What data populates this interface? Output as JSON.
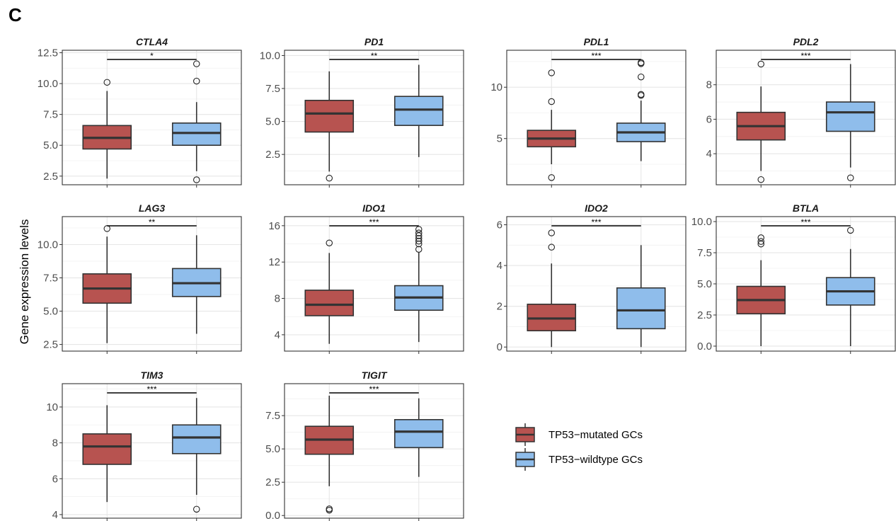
{
  "figure": {
    "panel_label": "C",
    "ylabel": "Gene expression levels",
    "legend": [
      {
        "label": "TP53−mutated GCs",
        "color": "#B75350"
      },
      {
        "label": "TP53−wildtype GCs",
        "color": "#8FBDEB"
      }
    ]
  },
  "chart_data": [
    {
      "type": "box",
      "title": "CTLA4",
      "ylim": [
        1.8,
        12.7
      ],
      "ticks": [
        2.5,
        5.0,
        7.5,
        10.0,
        12.5
      ],
      "tick_labels": [
        "2.5",
        "5.0",
        "7.5",
        "10.0",
        "12.5"
      ],
      "significance": "*",
      "boxes": [
        {
          "group": "TP53−mutated GCs",
          "min": 2.3,
          "q1": 4.7,
          "median": 5.6,
          "q3": 6.6,
          "max": 9.4,
          "outliers": [
            10.1
          ]
        },
        {
          "group": "TP53−wildtype GCs",
          "min": 2.9,
          "q1": 5.0,
          "median": 6.0,
          "q3": 6.8,
          "max": 8.5,
          "outliers": [
            11.6,
            10.2,
            2.2
          ]
        }
      ]
    },
    {
      "type": "box",
      "title": "PD1",
      "ylim": [
        0.2,
        10.4
      ],
      "ticks": [
        2.5,
        5.0,
        7.5,
        10.0
      ],
      "tick_labels": [
        "2.5",
        "5.0",
        "7.5",
        "10.0"
      ],
      "significance": "**",
      "boxes": [
        {
          "group": "TP53−mutated GCs",
          "min": 1.2,
          "q1": 4.2,
          "median": 5.6,
          "q3": 6.6,
          "max": 8.8,
          "outliers": [
            0.7
          ]
        },
        {
          "group": "TP53−wildtype GCs",
          "min": 2.3,
          "q1": 4.7,
          "median": 5.9,
          "q3": 6.9,
          "max": 9.3,
          "outliers": []
        }
      ]
    },
    {
      "type": "box",
      "title": "PDL1",
      "ylim": [
        0.5,
        13.6
      ],
      "ticks": [
        5,
        10
      ],
      "tick_labels": [
        "5",
        "10"
      ],
      "significance": "***",
      "boxes": [
        {
          "group": "TP53−mutated GCs",
          "min": 2.5,
          "q1": 4.2,
          "median": 5.0,
          "q3": 5.8,
          "max": 7.8,
          "outliers": [
            11.4,
            8.6,
            1.2
          ]
        },
        {
          "group": "TP53−wildtype GCs",
          "min": 2.8,
          "q1": 4.7,
          "median": 5.6,
          "q3": 6.5,
          "max": 8.7,
          "outliers": [
            12.4,
            12.3,
            11.0,
            9.3,
            9.2
          ]
        }
      ]
    },
    {
      "type": "box",
      "title": "PDL2",
      "ylim": [
        2.2,
        10.0
      ],
      "ticks": [
        4,
        6,
        8
      ],
      "tick_labels": [
        "4",
        "6",
        "8"
      ],
      "significance": "***",
      "boxes": [
        {
          "group": "TP53−mutated GCs",
          "min": 3.0,
          "q1": 4.8,
          "median": 5.6,
          "q3": 6.4,
          "max": 7.9,
          "outliers": [
            9.2,
            2.5
          ]
        },
        {
          "group": "TP53−wildtype GCs",
          "min": 3.2,
          "q1": 5.3,
          "median": 6.4,
          "q3": 7.0,
          "max": 9.2,
          "outliers": [
            2.6
          ]
        }
      ]
    },
    {
      "type": "box",
      "title": "LAG3",
      "ylim": [
        2.0,
        12.1
      ],
      "ticks": [
        2.5,
        5.0,
        7.5,
        10.0
      ],
      "tick_labels": [
        "2.5",
        "5.0",
        "7.5",
        "10.0"
      ],
      "significance": "**",
      "boxes": [
        {
          "group": "TP53−mutated GCs",
          "min": 2.6,
          "q1": 5.6,
          "median": 6.7,
          "q3": 7.8,
          "max": 10.6,
          "outliers": [
            11.2
          ]
        },
        {
          "group": "TP53−wildtype GCs",
          "min": 3.3,
          "q1": 6.1,
          "median": 7.1,
          "q3": 8.2,
          "max": 10.7,
          "outliers": []
        }
      ]
    },
    {
      "type": "box",
      "title": "IDO1",
      "ylim": [
        2.2,
        17.0
      ],
      "ticks": [
        4,
        8,
        12,
        16
      ],
      "tick_labels": [
        "4",
        "8",
        "12",
        "16"
      ],
      "significance": "***",
      "boxes": [
        {
          "group": "TP53−mutated GCs",
          "min": 3.0,
          "q1": 6.1,
          "median": 7.3,
          "q3": 8.9,
          "max": 13.0,
          "outliers": [
            14.1
          ]
        },
        {
          "group": "TP53−wildtype GCs",
          "min": 3.2,
          "q1": 6.7,
          "median": 8.1,
          "q3": 9.4,
          "max": 13.1,
          "outliers": [
            15.6,
            15.2,
            14.9,
            14.6,
            14.3,
            14.0,
            13.4
          ]
        }
      ]
    },
    {
      "type": "box",
      "title": "IDO2",
      "ylim": [
        -0.2,
        6.4
      ],
      "ticks": [
        0,
        2,
        4,
        6
      ],
      "tick_labels": [
        "0",
        "2",
        "4",
        "6"
      ],
      "significance": "***",
      "boxes": [
        {
          "group": "TP53−mutated GCs",
          "min": 0.0,
          "q1": 0.8,
          "median": 1.4,
          "q3": 2.1,
          "max": 4.1,
          "outliers": [
            5.6,
            4.9
          ]
        },
        {
          "group": "TP53−wildtype GCs",
          "min": 0.0,
          "q1": 0.9,
          "median": 1.8,
          "q3": 2.9,
          "max": 5.0,
          "outliers": []
        }
      ]
    },
    {
      "type": "box",
      "title": "BTLA",
      "ylim": [
        -0.4,
        10.4
      ],
      "ticks": [
        0.0,
        2.5,
        5.0,
        7.5,
        10.0
      ],
      "tick_labels": [
        "0.0",
        "2.5",
        "5.0",
        "7.5",
        "10.0"
      ],
      "significance": "***",
      "boxes": [
        {
          "group": "TP53−mutated GCs",
          "min": 0.0,
          "q1": 2.6,
          "median": 3.7,
          "q3": 4.8,
          "max": 6.9,
          "outliers": [
            8.7,
            8.4,
            8.2
          ]
        },
        {
          "group": "TP53−wildtype GCs",
          "min": 0.0,
          "q1": 3.3,
          "median": 4.4,
          "q3": 5.5,
          "max": 7.8,
          "outliers": [
            9.3
          ]
        }
      ]
    },
    {
      "type": "box",
      "title": "TIM3",
      "ylim": [
        3.8,
        11.3
      ],
      "ticks": [
        4,
        6,
        8,
        10
      ],
      "tick_labels": [
        "4",
        "6",
        "8",
        "10"
      ],
      "significance": "***",
      "boxes": [
        {
          "group": "TP53−mutated GCs",
          "min": 4.7,
          "q1": 6.8,
          "median": 7.8,
          "q3": 8.5,
          "max": 10.1,
          "outliers": []
        },
        {
          "group": "TP53−wildtype GCs",
          "min": 5.1,
          "q1": 7.4,
          "median": 8.3,
          "q3": 9.0,
          "max": 10.5,
          "outliers": [
            4.3
          ]
        }
      ]
    },
    {
      "type": "box",
      "title": "TIGIT",
      "ylim": [
        -0.2,
        9.9
      ],
      "ticks": [
        0.0,
        2.5,
        5.0,
        7.5
      ],
      "tick_labels": [
        "0.0",
        "2.5",
        "5.0",
        "7.5"
      ],
      "significance": "***",
      "boxes": [
        {
          "group": "TP53−mutated GCs",
          "min": 2.2,
          "q1": 4.6,
          "median": 5.7,
          "q3": 6.7,
          "max": 9.0,
          "outliers": [
            0.5,
            0.4
          ]
        },
        {
          "group": "TP53−wildtype GCs",
          "min": 2.9,
          "q1": 5.1,
          "median": 6.3,
          "q3": 7.2,
          "max": 8.8,
          "outliers": []
        }
      ]
    }
  ]
}
